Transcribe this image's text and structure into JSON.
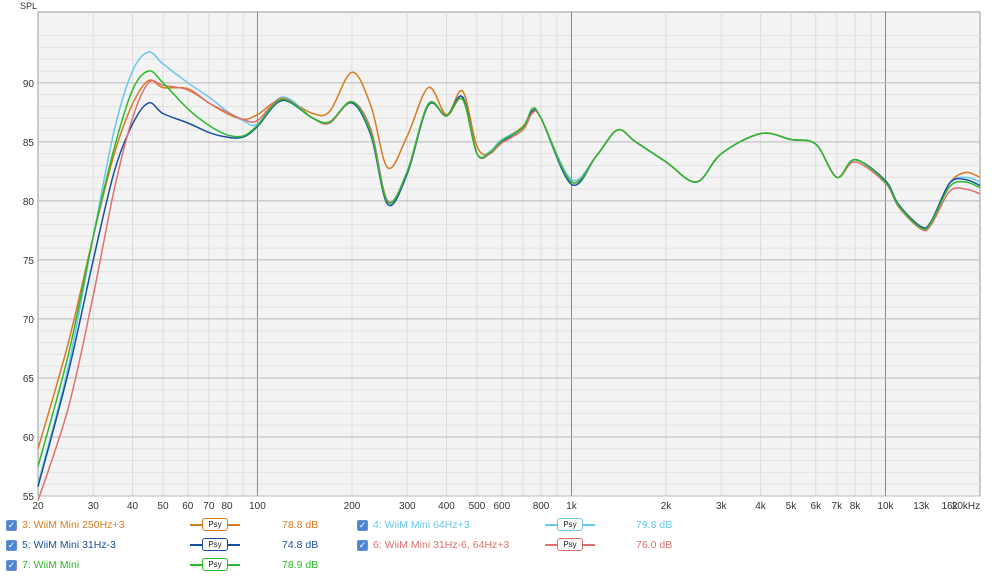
{
  "chart_data": {
    "type": "line",
    "ylabel": "SPL",
    "xscale": "log",
    "xlim": [
      20,
      20000
    ],
    "ylim": [
      55,
      96
    ],
    "grid": true,
    "y_ticks": [
      55,
      60,
      65,
      70,
      75,
      80,
      85,
      90
    ],
    "x_ticks": [
      {
        "v": 20,
        "label": "20"
      },
      {
        "v": 30,
        "label": "30"
      },
      {
        "v": 40,
        "label": "40"
      },
      {
        "v": 50,
        "label": "50"
      },
      {
        "v": 60,
        "label": "60"
      },
      {
        "v": 70,
        "label": "70"
      },
      {
        "v": 80,
        "label": "80"
      },
      {
        "v": 100,
        "label": "100"
      },
      {
        "v": 200,
        "label": "200"
      },
      {
        "v": 300,
        "label": "300"
      },
      {
        "v": 400,
        "label": "400"
      },
      {
        "v": 500,
        "label": "500"
      },
      {
        "v": 600,
        "label": "600"
      },
      {
        "v": 800,
        "label": "800"
      },
      {
        "v": 1000,
        "label": "1k"
      },
      {
        "v": 2000,
        "label": "2k"
      },
      {
        "v": 3000,
        "label": "3k"
      },
      {
        "v": 4000,
        "label": "4k"
      },
      {
        "v": 5000,
        "label": "5k"
      },
      {
        "v": 6000,
        "label": "6k"
      },
      {
        "v": 7000,
        "label": "7k"
      },
      {
        "v": 8000,
        "label": "8k"
      },
      {
        "v": 10000,
        "label": "10k"
      },
      {
        "v": 13000,
        "label": "13k"
      },
      {
        "v": 16000,
        "label": "16k"
      },
      {
        "v": 20000,
        "label": "20kHz"
      }
    ],
    "shared_x": [
      20,
      25,
      30,
      35,
      40,
      45,
      50,
      60,
      70,
      80,
      90,
      100,
      120,
      150,
      170,
      200,
      230,
      260,
      300,
      350,
      400,
      450,
      500,
      550,
      600,
      700,
      750,
      800,
      1000,
      1200,
      1400,
      1600,
      2000,
      2500,
      3000,
      4000,
      5000,
      6000,
      7000,
      8000,
      10000,
      11000,
      13000,
      14000,
      16000,
      18000,
      20000
    ],
    "series": [
      {
        "name": "3: WiiM Mini 250Hz+3",
        "color": "#d97a1e",
        "values": [
          59.0,
          68.0,
          77.0,
          84.0,
          88.2,
          90.2,
          89.6,
          89.5,
          88.3,
          87.4,
          86.9,
          87.3,
          88.6,
          87.4,
          87.6,
          90.9,
          88.0,
          82.8,
          85.5,
          89.6,
          87.3,
          89.3,
          84.6,
          84.0,
          85.1,
          86.3,
          87.6,
          87.0,
          81.8,
          83.8,
          86.0,
          85.0,
          83.3,
          81.6,
          84.0,
          85.7,
          85.2,
          84.8,
          82.0,
          83.5,
          81.7,
          79.7,
          77.8,
          78.3,
          81.5,
          82.4,
          82.0
        ]
      },
      {
        "name": "4: WiiM Mini 64Hz+3",
        "color": "#6ac6ec",
        "values": [
          56.0,
          66.0,
          77.0,
          86.0,
          91.0,
          92.6,
          91.6,
          90.0,
          88.8,
          87.6,
          86.8,
          86.5,
          88.8,
          87.0,
          86.6,
          88.4,
          86.0,
          80.0,
          82.5,
          88.2,
          87.2,
          88.8,
          84.0,
          84.2,
          85.2,
          86.2,
          87.6,
          87.0,
          81.8,
          83.8,
          86.0,
          85.0,
          83.3,
          81.6,
          84.0,
          85.7,
          85.2,
          84.8,
          82.0,
          83.5,
          81.7,
          79.7,
          77.8,
          78.3,
          81.5,
          82.0,
          81.6
        ]
      },
      {
        "name": "5: WiiM Mini 31Hz-3",
        "color": "#1a4fa0",
        "values": [
          55.8,
          65.5,
          75.0,
          82.5,
          86.5,
          88.3,
          87.4,
          86.6,
          85.8,
          85.4,
          85.4,
          86.3,
          88.5,
          87.0,
          86.7,
          88.3,
          85.5,
          79.7,
          82.3,
          88.1,
          87.2,
          88.8,
          84.0,
          84.0,
          85.0,
          86.2,
          87.6,
          87.0,
          81.4,
          83.8,
          86.0,
          85.0,
          83.3,
          81.6,
          84.0,
          85.7,
          85.2,
          84.8,
          82.0,
          83.5,
          81.7,
          79.7,
          77.8,
          78.3,
          81.5,
          81.8,
          81.3
        ]
      },
      {
        "name": "6: WiiM Mini 31Hz-6, 64Hz+3",
        "color": "#e07070",
        "values": [
          54.6,
          62.5,
          72.0,
          81.0,
          87.0,
          90.0,
          89.8,
          89.4,
          88.3,
          87.5,
          86.9,
          86.8,
          88.7,
          87.0,
          86.6,
          88.4,
          86.0,
          80.0,
          82.5,
          88.2,
          87.2,
          88.6,
          84.0,
          84.0,
          84.9,
          86.0,
          87.4,
          87.0,
          81.6,
          83.8,
          86.0,
          85.0,
          83.3,
          81.6,
          84.0,
          85.7,
          85.2,
          84.8,
          82.0,
          83.3,
          81.5,
          79.5,
          77.6,
          78.0,
          80.8,
          81.0,
          80.6
        ]
      },
      {
        "name": "7: WiiM Mini",
        "color": "#2bba2b",
        "values": [
          57.5,
          67.0,
          77.0,
          84.5,
          89.4,
          91.0,
          90.0,
          87.8,
          86.4,
          85.6,
          85.5,
          86.4,
          88.6,
          87.0,
          86.7,
          88.4,
          85.7,
          79.9,
          82.5,
          88.2,
          87.2,
          88.6,
          84.0,
          84.1,
          85.1,
          86.2,
          87.8,
          87.0,
          81.6,
          83.8,
          86.0,
          85.0,
          83.3,
          81.6,
          84.0,
          85.7,
          85.2,
          84.8,
          82.0,
          83.5,
          81.6,
          79.6,
          77.7,
          78.2,
          81.2,
          81.6,
          81.1
        ]
      }
    ]
  },
  "legend": [
    {
      "label": "3: WiiM Mini 250Hz+3",
      "psy": "Psy",
      "db": "78.8 dB",
      "color": "#d97a1e"
    },
    {
      "label": "4: WiiM Mini 64Hz+3",
      "psy": "Psy",
      "db": "79.8 dB",
      "color": "#6ac6ec"
    },
    {
      "label": "5: WiiM Mini 31Hz-3",
      "psy": "Psy",
      "db": "74.8 dB",
      "color": "#1a4fa0"
    },
    {
      "label": "6: WiiM Mini 31Hz-6, 64Hz+3",
      "psy": "Psy",
      "db": "76.0 dB",
      "color": "#e07070"
    },
    {
      "label": "7: WiiM Mini",
      "psy": "Psy",
      "db": "78.9 dB",
      "color": "#2bba2b"
    }
  ],
  "checkbox_glyph": "✓"
}
